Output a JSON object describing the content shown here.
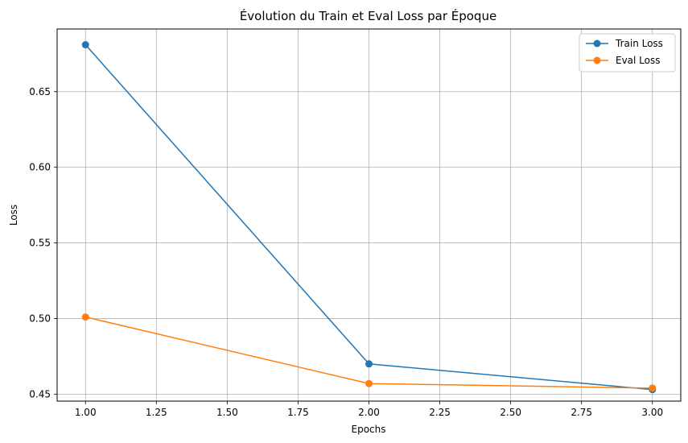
{
  "chart_data": {
    "type": "line",
    "title": "Évolution du Train et Eval Loss par Époque",
    "xlabel": "Epochs",
    "ylabel": "Loss",
    "x": [
      1,
      2,
      3
    ],
    "series": [
      {
        "name": "Train Loss",
        "color": "#1f77b4",
        "values": [
          0.681,
          0.47,
          0.453
        ]
      },
      {
        "name": "Eval Loss",
        "color": "#ff7f0e",
        "values": [
          0.501,
          0.457,
          0.454
        ]
      }
    ],
    "xlim": [
      0.9,
      3.1
    ],
    "ylim": [
      0.4454,
      0.6914
    ],
    "xticks": [
      1.0,
      1.25,
      1.5,
      1.75,
      2.0,
      2.25,
      2.5,
      2.75,
      3.0
    ],
    "xtick_labels": [
      "1.00",
      "1.25",
      "1.50",
      "1.75",
      "2.00",
      "2.25",
      "2.50",
      "2.75",
      "3.00"
    ],
    "yticks": [
      0.45,
      0.5,
      0.55,
      0.6,
      0.65
    ],
    "ytick_labels": [
      "0.45",
      "0.50",
      "0.55",
      "0.60",
      "0.65"
    ],
    "grid": true,
    "legend_position": "top-right"
  }
}
